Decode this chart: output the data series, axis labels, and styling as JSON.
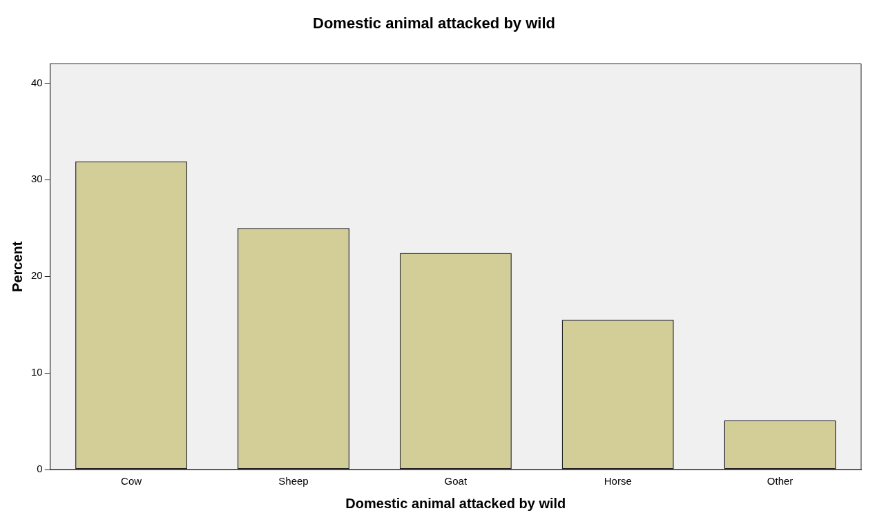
{
  "chart_data": {
    "type": "bar",
    "title": "Domestic animal attacked by wild",
    "xlabel": "Domestic animal attacked by wild",
    "ylabel": "Percent",
    "categories": [
      "Cow",
      "Sheep",
      "Goat",
      "Horse",
      "Other"
    ],
    "values": [
      31.9,
      25.0,
      22.4,
      15.5,
      5.1
    ],
    "color": "#d3ce97",
    "ylim": [
      0,
      42
    ],
    "yticks": [
      0,
      10,
      20,
      30,
      40
    ],
    "grid": false,
    "legend": false
  }
}
